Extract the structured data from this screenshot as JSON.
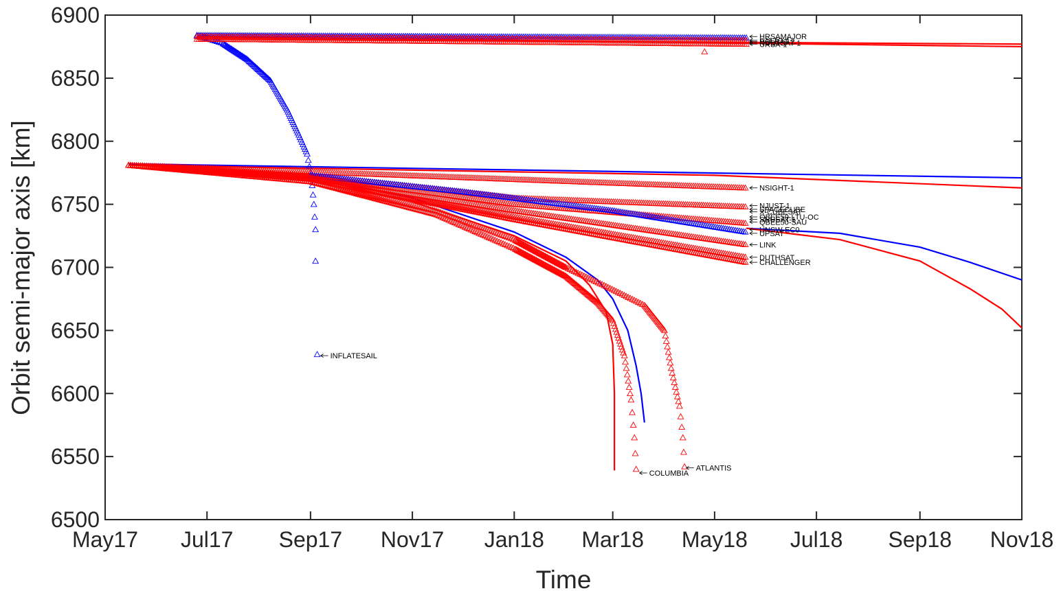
{
  "chart_data": {
    "type": "scatter",
    "title": "",
    "xlabel": "Time",
    "ylabel": "Orbit semi-major axis [km]",
    "x_ticks": [
      "May17",
      "Jul17",
      "Sep17",
      "Nov17",
      "Jan18",
      "Mar18",
      "May18",
      "Jul18",
      "Sep18",
      "Nov18"
    ],
    "x_range": [
      "2017-05-01",
      "2018-11-01"
    ],
    "ylim": [
      6500,
      6900
    ],
    "y_ticks": [
      6500,
      6550,
      6600,
      6650,
      6700,
      6750,
      6800,
      6850,
      6900
    ],
    "grid": false,
    "legend": "none",
    "colors": {
      "blue": "#0000ff",
      "red": "#ff0000",
      "axis": "#262626"
    },
    "observed_series": [
      {
        "color": "blue",
        "points": [
          [
            "2017-06-25",
            6884
          ],
          [
            "2017-07-10",
            6878
          ],
          [
            "2017-07-25",
            6865
          ],
          [
            "2017-08-08",
            6848
          ],
          [
            "2017-08-18",
            6825
          ],
          [
            "2017-08-25",
            6805
          ],
          [
            "2017-08-30",
            6790
          ],
          [
            "2017-09-01",
            6775
          ],
          [
            "2017-09-02",
            6765
          ],
          [
            "2017-09-03",
            6750
          ],
          [
            "2017-09-04",
            6730
          ],
          [
            "2017-09-04",
            6705
          ]
        ]
      },
      {
        "color": "blue",
        "points": [
          [
            "2017-06-25",
            6884
          ],
          [
            "2018-05-20",
            6882
          ]
        ]
      },
      {
        "color": "red",
        "points": [
          [
            "2017-06-25",
            6881
          ],
          [
            "2018-05-20",
            6877
          ]
        ]
      },
      {
        "color": "red",
        "points": [
          [
            "2017-06-25",
            6883
          ],
          [
            "2018-05-20",
            6880
          ]
        ]
      },
      {
        "color": "red",
        "points": [
          [
            "2018-04-25",
            6871
          ]
        ]
      },
      {
        "color": "red",
        "points": [
          [
            "2017-05-15",
            6781
          ],
          [
            "2018-05-20",
            6763
          ]
        ]
      },
      {
        "color": "red",
        "points": [
          [
            "2017-05-15",
            6781
          ],
          [
            "2017-09-01",
            6773
          ],
          [
            "2018-01-01",
            6755
          ],
          [
            "2018-05-20",
            6748
          ]
        ]
      },
      {
        "color": "red",
        "points": [
          [
            "2017-05-15",
            6781
          ],
          [
            "2017-09-01",
            6772
          ],
          [
            "2018-01-01",
            6750
          ],
          [
            "2018-05-20",
            6735
          ]
        ]
      },
      {
        "color": "blue",
        "points": [
          [
            "2017-09-01",
            6773
          ],
          [
            "2017-12-01",
            6760
          ],
          [
            "2018-03-01",
            6745
          ],
          [
            "2018-05-20",
            6728
          ]
        ]
      },
      {
        "color": "red",
        "points": [
          [
            "2017-05-15",
            6781
          ],
          [
            "2017-09-01",
            6771
          ],
          [
            "2018-01-01",
            6745
          ],
          [
            "2018-05-20",
            6718
          ]
        ]
      },
      {
        "color": "red",
        "points": [
          [
            "2017-05-15",
            6781
          ],
          [
            "2017-09-01",
            6770
          ],
          [
            "2018-01-01",
            6740
          ],
          [
            "2018-05-20",
            6708
          ]
        ]
      },
      {
        "color": "red",
        "points": [
          [
            "2017-05-15",
            6781
          ],
          [
            "2017-09-01",
            6770
          ],
          [
            "2018-01-01",
            6738
          ],
          [
            "2018-05-20",
            6704
          ]
        ]
      },
      {
        "color": "red",
        "points": [
          [
            "2017-05-15",
            6781
          ],
          [
            "2017-09-01",
            6768
          ],
          [
            "2017-11-15",
            6742
          ],
          [
            "2018-01-01",
            6715
          ],
          [
            "2018-02-01",
            6693
          ],
          [
            "2018-02-20",
            6672
          ],
          [
            "2018-03-01",
            6658
          ],
          [
            "2018-03-08",
            6630
          ],
          [
            "2018-03-12",
            6595
          ],
          [
            "2018-03-14",
            6565
          ],
          [
            "2018-03-15",
            6540
          ]
        ]
      },
      {
        "color": "red",
        "points": [
          [
            "2017-05-15",
            6781
          ],
          [
            "2017-09-01",
            6768
          ],
          [
            "2017-11-15",
            6745
          ],
          [
            "2018-01-01",
            6722
          ],
          [
            "2018-02-01",
            6700
          ],
          [
            "2018-02-25",
            6685
          ],
          [
            "2018-03-20",
            6670
          ],
          [
            "2018-04-01",
            6650
          ],
          [
            "2018-04-05",
            6620
          ],
          [
            "2018-04-10",
            6590
          ],
          [
            "2018-04-12",
            6565
          ],
          [
            "2018-04-13",
            6542
          ]
        ]
      },
      {
        "color": "blue",
        "points": [
          [
            "2017-09-05",
            6631
          ]
        ]
      }
    ],
    "prediction_lines": [
      {
        "color": "red",
        "points": [
          [
            "2017-06-25",
            6881
          ],
          [
            "2018-11-01",
            6877
          ]
        ]
      },
      {
        "color": "red",
        "points": [
          [
            "2017-06-25",
            6883
          ],
          [
            "2018-11-01",
            6875
          ]
        ]
      },
      {
        "color": "blue",
        "points": [
          [
            "2017-05-15",
            6782
          ],
          [
            "2018-11-01",
            6771
          ]
        ]
      },
      {
        "color": "red",
        "points": [
          [
            "2017-05-15",
            6781
          ],
          [
            "2018-05-01",
            6773
          ],
          [
            "2018-11-01",
            6763
          ]
        ]
      },
      {
        "color": "blue",
        "points": [
          [
            "2018-05-20",
            6731
          ],
          [
            "2018-07-15",
            6727
          ],
          [
            "2018-09-01",
            6716
          ],
          [
            "2018-10-01",
            6704
          ],
          [
            "2018-11-01",
            6690
          ]
        ]
      },
      {
        "color": "red",
        "points": [
          [
            "2018-05-20",
            6731
          ],
          [
            "2018-07-15",
            6722
          ],
          [
            "2018-09-01",
            6705
          ],
          [
            "2018-10-01",
            6683
          ],
          [
            "2018-10-20",
            6667
          ],
          [
            "2018-11-01",
            6652
          ]
        ]
      },
      {
        "color": "red",
        "points": [
          [
            "2017-06-01",
            6780
          ],
          [
            "2017-09-01",
            6771
          ],
          [
            "2017-11-01",
            6752
          ],
          [
            "2018-01-01",
            6725
          ],
          [
            "2018-02-01",
            6705
          ],
          [
            "2018-02-15",
            6686
          ],
          [
            "2018-02-25",
            6665
          ],
          [
            "2018-03-01",
            6639
          ],
          [
            "2018-03-02",
            6600
          ],
          [
            "2018-03-02",
            6570
          ],
          [
            "2018-03-02",
            6539
          ]
        ]
      },
      {
        "color": "blue",
        "points": [
          [
            "2017-09-01",
            6772
          ],
          [
            "2017-11-01",
            6755
          ],
          [
            "2018-01-01",
            6728
          ],
          [
            "2018-02-01",
            6708
          ],
          [
            "2018-02-20",
            6690
          ],
          [
            "2018-03-01",
            6675
          ],
          [
            "2018-03-10",
            6650
          ],
          [
            "2018-03-15",
            6622
          ],
          [
            "2018-03-18",
            6600
          ],
          [
            "2018-03-20",
            6577
          ]
        ]
      }
    ],
    "annotations": [
      {
        "text": "HRSAMAJOR",
        "x": "2018-05-20",
        "y": 6883
      },
      {
        "text": "AALTO-1",
        "x": "2018-05-20",
        "y": 6880
      },
      {
        "text": "UCLSAT 2",
        "x": "2018-05-20",
        "y": 6879
      },
      {
        "text": "NUDTSAT-1",
        "x": "2018-05-20",
        "y": 6878
      },
      {
        "text": "URSA-1",
        "x": "2018-05-20",
        "y": 6877
      },
      {
        "text": "NSIGHT-1",
        "x": "2018-05-20",
        "y": 6763
      },
      {
        "text": "NJUST-1",
        "x": "2018-05-20",
        "y": 6749
      },
      {
        "text": "SPACECUBE",
        "x": "2018-05-20",
        "y": 6746
      },
      {
        "text": "QBEE50-LTU-OC",
        "x": "2018-05-20",
        "y": 6740
      },
      {
        "text": "SNUSAT-1",
        "x": "2018-05-20",
        "y": 6738
      },
      {
        "text": "X-CUBESAT",
        "x": "2018-05-20",
        "y": 6744
      },
      {
        "text": "UNSW-EC0",
        "x": "2018-05-20",
        "y": 6730
      },
      {
        "text": "QBEE50-SAU",
        "x": "2018-05-20",
        "y": 6736
      },
      {
        "text": "UPSAT",
        "x": "2018-05-20",
        "y": 6727
      },
      {
        "text": "LINK",
        "x": "2018-05-20",
        "y": 6718
      },
      {
        "text": "DUTHSAT",
        "x": "2018-05-20",
        "y": 6708
      },
      {
        "text": "CHALLENGER",
        "x": "2018-05-20",
        "y": 6704
      },
      {
        "text": "INFLATESAIL",
        "x": "2017-09-05",
        "y": 6630
      },
      {
        "text": "ATLANTIS",
        "x": "2018-04-12",
        "y": 6541
      },
      {
        "text": "COLUMBIA",
        "x": "2018-03-15",
        "y": 6537
      }
    ]
  }
}
